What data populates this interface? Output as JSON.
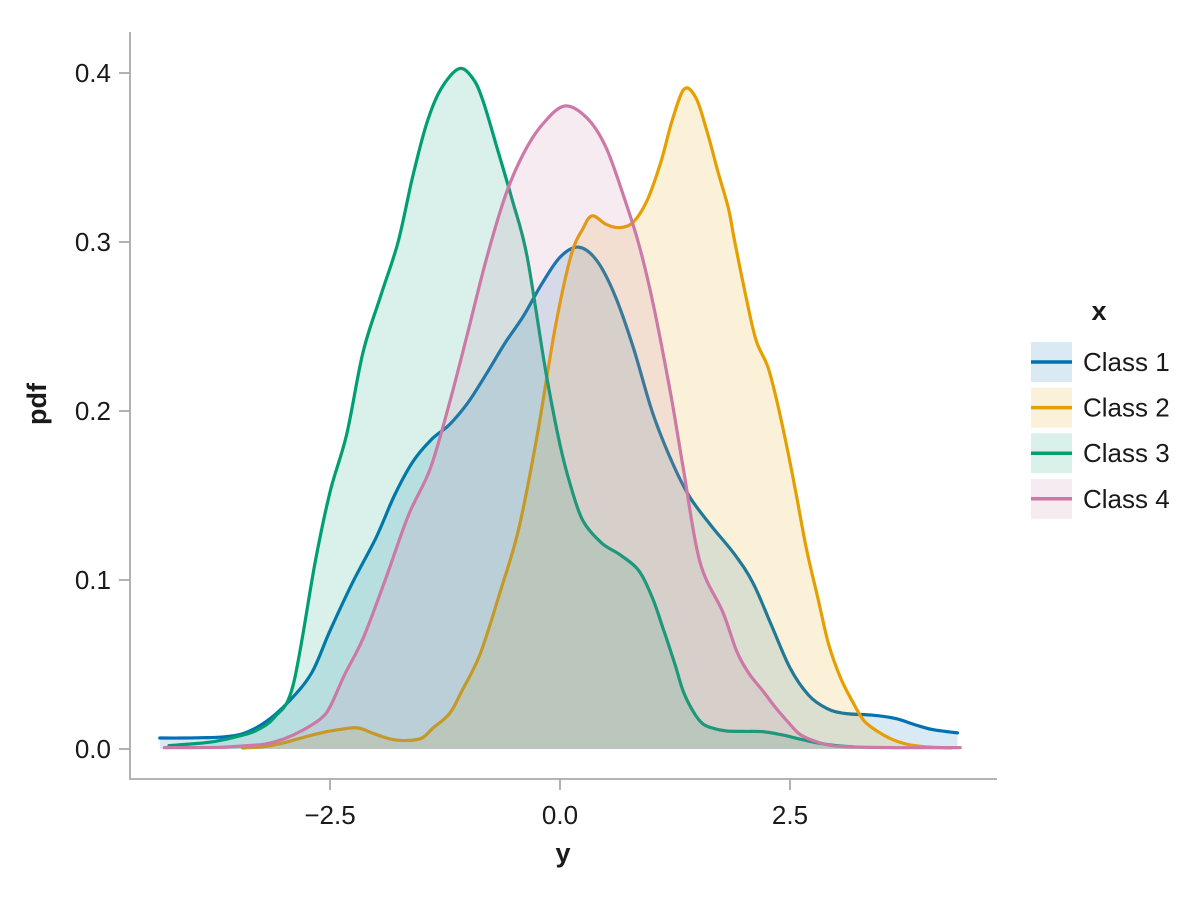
{
  "figure": {
    "background": "#ffffff",
    "spine_color": "#a9a9a9",
    "text_color": "#1a1a1a"
  },
  "axis": {
    "x_label": "y",
    "y_label": "pdf",
    "x_ticks": [
      {
        "value": -2.5,
        "label": "−2.5"
      },
      {
        "value": 0.0,
        "label": "0.0"
      },
      {
        "value": 2.5,
        "label": "2.5"
      }
    ],
    "y_ticks": [
      {
        "value": 0.0,
        "label": "0.0"
      },
      {
        "value": 0.1,
        "label": "0.1"
      },
      {
        "value": 0.2,
        "label": "0.2"
      },
      {
        "value": 0.3,
        "label": "0.3"
      },
      {
        "value": 0.4,
        "label": "0.4"
      }
    ]
  },
  "legend": {
    "title": "x",
    "entries": [
      {
        "label": "Class 1",
        "color": "#0072B2"
      },
      {
        "label": "Class 2",
        "color": "#E69F00"
      },
      {
        "label": "Class 3",
        "color": "#009E73"
      },
      {
        "label": "Class 4",
        "color": "#CC79A7"
      }
    ]
  },
  "chart_data": {
    "type": "area",
    "title": "",
    "xlabel": "y",
    "ylabel": "pdf",
    "xlim": [
      -4.7,
      4.75
    ],
    "ylim": [
      0,
      0.42
    ],
    "grid": false,
    "legend_position": "right",
    "fill_opacity": 0.15,
    "series": [
      {
        "name": "Class 1",
        "color": "#0072B2",
        "points": [
          [
            -4.35,
            0.0065
          ],
          [
            -4.1,
            0.0065
          ],
          [
            -3.9,
            0.0067
          ],
          [
            -3.7,
            0.007
          ],
          [
            -3.45,
            0.009
          ],
          [
            -3.2,
            0.016
          ],
          [
            -2.95,
            0.028
          ],
          [
            -2.7,
            0.045
          ],
          [
            -2.5,
            0.07
          ],
          [
            -2.25,
            0.099
          ],
          [
            -2.0,
            0.125
          ],
          [
            -1.8,
            0.15
          ],
          [
            -1.6,
            0.17
          ],
          [
            -1.4,
            0.183
          ],
          [
            -1.2,
            0.192
          ],
          [
            -1.0,
            0.205
          ],
          [
            -0.8,
            0.222
          ],
          [
            -0.6,
            0.24
          ],
          [
            -0.4,
            0.256
          ],
          [
            -0.2,
            0.275
          ],
          [
            0.0,
            0.291
          ],
          [
            0.2,
            0.297
          ],
          [
            0.4,
            0.289
          ],
          [
            0.6,
            0.268
          ],
          [
            0.8,
            0.237
          ],
          [
            1.0,
            0.2
          ],
          [
            1.2,
            0.172
          ],
          [
            1.4,
            0.15
          ],
          [
            1.63,
            0.133
          ],
          [
            1.9,
            0.115
          ],
          [
            2.1,
            0.098
          ],
          [
            2.3,
            0.073
          ],
          [
            2.5,
            0.048
          ],
          [
            2.7,
            0.032
          ],
          [
            2.9,
            0.024
          ],
          [
            3.1,
            0.021
          ],
          [
            3.4,
            0.02
          ],
          [
            3.65,
            0.018
          ],
          [
            3.85,
            0.0145
          ],
          [
            4.05,
            0.0115
          ],
          [
            4.32,
            0.0095
          ]
        ]
      },
      {
        "name": "Class 2",
        "color": "#E69F00",
        "points": [
          [
            -3.45,
            0.0006
          ],
          [
            -3.25,
            0.0012
          ],
          [
            -3.05,
            0.003
          ],
          [
            -2.85,
            0.006
          ],
          [
            -2.6,
            0.0095
          ],
          [
            -2.4,
            0.0115
          ],
          [
            -2.2,
            0.0125
          ],
          [
            -2.02,
            0.009
          ],
          [
            -1.85,
            0.006
          ],
          [
            -1.66,
            0.005
          ],
          [
            -1.5,
            0.0065
          ],
          [
            -1.38,
            0.0124
          ],
          [
            -1.2,
            0.021
          ],
          [
            -1.07,
            0.034
          ],
          [
            -0.87,
            0.056
          ],
          [
            -0.65,
            0.093
          ],
          [
            -0.45,
            0.13
          ],
          [
            -0.25,
            0.185
          ],
          [
            -0.05,
            0.25
          ],
          [
            0.12,
            0.292
          ],
          [
            0.25,
            0.308
          ],
          [
            0.35,
            0.3155
          ],
          [
            0.5,
            0.3105
          ],
          [
            0.65,
            0.3085
          ],
          [
            0.8,
            0.312
          ],
          [
            0.95,
            0.325
          ],
          [
            1.1,
            0.348
          ],
          [
            1.22,
            0.372
          ],
          [
            1.35,
            0.3905
          ],
          [
            1.48,
            0.385
          ],
          [
            1.6,
            0.365
          ],
          [
            1.72,
            0.341
          ],
          [
            1.83,
            0.32
          ],
          [
            1.9,
            0.3
          ],
          [
            2.02,
            0.268
          ],
          [
            2.13,
            0.242
          ],
          [
            2.26,
            0.226
          ],
          [
            2.37,
            0.203
          ],
          [
            2.48,
            0.175
          ],
          [
            2.58,
            0.147
          ],
          [
            2.68,
            0.118
          ],
          [
            2.8,
            0.09
          ],
          [
            2.92,
            0.062
          ],
          [
            3.05,
            0.042
          ],
          [
            3.18,
            0.028
          ],
          [
            3.3,
            0.017
          ],
          [
            3.45,
            0.0105
          ],
          [
            3.62,
            0.0055
          ],
          [
            3.8,
            0.0025
          ],
          [
            4.0,
            0.0012
          ],
          [
            4.25,
            0.0006
          ]
        ]
      },
      {
        "name": "Class 3",
        "color": "#009E73",
        "points": [
          [
            -4.25,
            0.002
          ],
          [
            -4.0,
            0.003
          ],
          [
            -3.75,
            0.0045
          ],
          [
            -3.5,
            0.0075
          ],
          [
            -3.3,
            0.011
          ],
          [
            -3.1,
            0.019
          ],
          [
            -2.9,
            0.038
          ],
          [
            -2.66,
            0.111
          ],
          [
            -2.5,
            0.152
          ],
          [
            -2.32,
            0.186
          ],
          [
            -2.14,
            0.235
          ],
          [
            -1.95,
            0.268
          ],
          [
            -1.76,
            0.3
          ],
          [
            -1.6,
            0.339
          ],
          [
            -1.45,
            0.37
          ],
          [
            -1.3,
            0.39
          ],
          [
            -1.1,
            0.4025
          ],
          [
            -0.95,
            0.397
          ],
          [
            -0.84,
            0.384
          ],
          [
            -0.68,
            0.355
          ],
          [
            -0.52,
            0.325
          ],
          [
            -0.36,
            0.292
          ],
          [
            -0.16,
            0.225
          ],
          [
            0.0,
            0.18
          ],
          [
            0.12,
            0.155
          ],
          [
            0.25,
            0.135
          ],
          [
            0.45,
            0.122
          ],
          [
            0.65,
            0.115
          ],
          [
            0.85,
            0.106
          ],
          [
            1.0,
            0.09
          ],
          [
            1.12,
            0.0715
          ],
          [
            1.25,
            0.05
          ],
          [
            1.34,
            0.034
          ],
          [
            1.45,
            0.022
          ],
          [
            1.55,
            0.015
          ],
          [
            1.65,
            0.0125
          ],
          [
            1.8,
            0.0107
          ],
          [
            2.0,
            0.0104
          ],
          [
            2.2,
            0.0103
          ],
          [
            2.4,
            0.0085
          ],
          [
            2.6,
            0.006
          ],
          [
            2.8,
            0.0036
          ],
          [
            3.0,
            0.002
          ],
          [
            3.2,
            0.0012
          ]
        ]
      },
      {
        "name": "Class 4",
        "color": "#CC79A7",
        "points": [
          [
            -4.3,
            0.0008
          ],
          [
            -4.0,
            0.0008
          ],
          [
            -3.7,
            0.001
          ],
          [
            -3.4,
            0.002
          ],
          [
            -3.2,
            0.003
          ],
          [
            -3.0,
            0.006
          ],
          [
            -2.8,
            0.011
          ],
          [
            -2.6,
            0.018
          ],
          [
            -2.5,
            0.025
          ],
          [
            -2.34,
            0.044
          ],
          [
            -2.14,
            0.0655
          ],
          [
            -1.9,
            0.1
          ],
          [
            -1.65,
            0.138
          ],
          [
            -1.41,
            0.166
          ],
          [
            -1.2,
            0.205
          ],
          [
            -1.0,
            0.247
          ],
          [
            -0.8,
            0.29
          ],
          [
            -0.59,
            0.328
          ],
          [
            -0.4,
            0.352
          ],
          [
            -0.2,
            0.369
          ],
          [
            0.05,
            0.3805
          ],
          [
            0.3,
            0.373
          ],
          [
            0.5,
            0.356
          ],
          [
            0.68,
            0.329
          ],
          [
            0.85,
            0.3
          ],
          [
            1.01,
            0.264
          ],
          [
            1.2,
            0.211
          ],
          [
            1.34,
            0.166
          ],
          [
            1.52,
            0.111
          ],
          [
            1.77,
            0.081
          ],
          [
            1.92,
            0.058
          ],
          [
            2.05,
            0.045
          ],
          [
            2.21,
            0.034
          ],
          [
            2.35,
            0.024
          ],
          [
            2.47,
            0.0165
          ],
          [
            2.6,
            0.009
          ],
          [
            2.75,
            0.005
          ],
          [
            2.95,
            0.002
          ],
          [
            3.2,
            0.0012
          ],
          [
            3.6,
            0.0008
          ],
          [
            4.0,
            0.0008
          ],
          [
            4.35,
            0.0008
          ]
        ]
      }
    ]
  }
}
